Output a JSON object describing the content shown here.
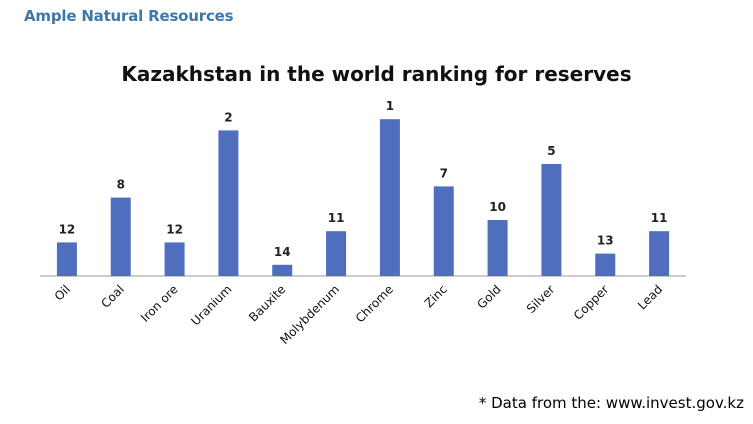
{
  "heading": "Ample Natural Resources",
  "footnote": "* Data from the: www.invest.gov.kz",
  "colors": {
    "heading": "#3f78a8",
    "bar": "#4f6fbe",
    "axis": "#9a9a9a"
  },
  "chart_data": {
    "type": "bar",
    "title": "Kazakhstan in the world ranking for reserves",
    "xlabel": "",
    "ylabel": "",
    "categories": [
      "Oil",
      "Coal",
      "Iron ore",
      "Uranium",
      "Bauxite",
      "Molybdenum",
      "Chrome",
      "Zinc",
      "Gold",
      "Silver",
      "Copper",
      "Lead"
    ],
    "values": [
      12,
      8,
      12,
      2,
      14,
      11,
      1,
      7,
      10,
      5,
      13,
      11
    ],
    "value_meaning": "rank (shorter bar = lower rank number is not implied; bar height decreases as rank increases)",
    "grid": false,
    "legend": "none"
  }
}
